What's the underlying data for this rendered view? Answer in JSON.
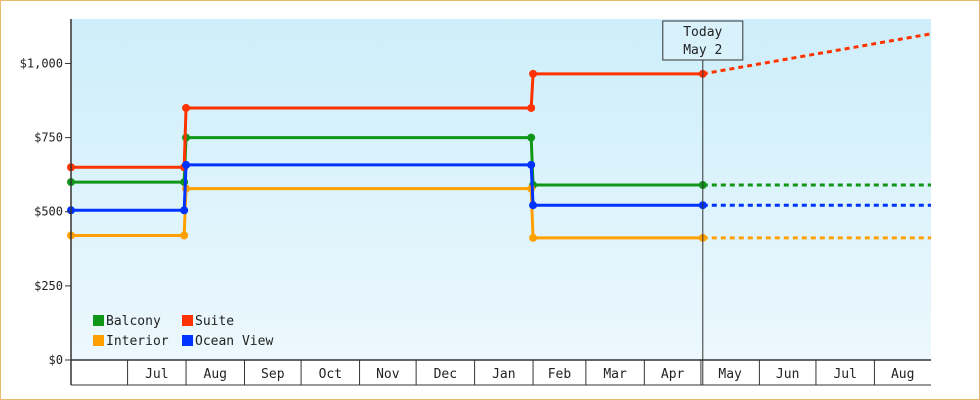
{
  "chart_data": {
    "type": "line",
    "step": true,
    "title": "",
    "xlabel": "",
    "ylabel": "",
    "ylim": [
      0,
      1150
    ],
    "y_ticks": [
      0,
      250,
      500,
      750,
      1000
    ],
    "y_tick_labels": [
      "$0",
      "$250",
      "$500",
      "$750",
      "$1,000"
    ],
    "x_domain": [
      "2024-06-01",
      "2025-08-31"
    ],
    "x_tick_labels": [
      "Jul",
      "Aug",
      "Sep",
      "Oct",
      "Nov",
      "Dec",
      "Jan",
      "Feb",
      "Mar",
      "Apr",
      "May",
      "Jun",
      "Jul",
      "Aug"
    ],
    "today": {
      "date": "2025-05-02",
      "line1": "Today",
      "line2": "May 2"
    },
    "background_gradient": [
      "#cdeefa",
      "#ecf8fd"
    ],
    "grid": false,
    "legend_position": "bottom-left",
    "series": [
      {
        "name": "Balcony",
        "color": "#109618",
        "points": [
          [
            "2024-06-01",
            600
          ],
          [
            "2024-07-31",
            600
          ],
          [
            "2024-08-01",
            750
          ],
          [
            "2025-01-31",
            750
          ],
          [
            "2025-02-01",
            590
          ],
          [
            "2025-05-02",
            590
          ]
        ],
        "forecast": [
          [
            "2025-05-02",
            590
          ],
          [
            "2025-08-31",
            590
          ]
        ]
      },
      {
        "name": "Suite",
        "color": "#ff3300",
        "points": [
          [
            "2024-06-01",
            650
          ],
          [
            "2024-07-31",
            650
          ],
          [
            "2024-08-01",
            850
          ],
          [
            "2025-01-31",
            850
          ],
          [
            "2025-02-01",
            965
          ],
          [
            "2025-05-02",
            965
          ]
        ],
        "forecast": [
          [
            "2025-05-02",
            965
          ],
          [
            "2025-08-31",
            1100
          ]
        ]
      },
      {
        "name": "Interior",
        "color": "#ff9f00",
        "points": [
          [
            "2024-06-01",
            420
          ],
          [
            "2024-07-31",
            420
          ],
          [
            "2024-08-01",
            578
          ],
          [
            "2025-01-31",
            578
          ],
          [
            "2025-02-01",
            412
          ],
          [
            "2025-05-02",
            412
          ]
        ],
        "forecast": [
          [
            "2025-05-02",
            412
          ],
          [
            "2025-08-31",
            412
          ]
        ]
      },
      {
        "name": "Ocean View",
        "color": "#0033ff",
        "points": [
          [
            "2024-06-01",
            505
          ],
          [
            "2024-07-31",
            505
          ],
          [
            "2024-08-01",
            658
          ],
          [
            "2025-01-31",
            658
          ],
          [
            "2025-02-01",
            522
          ],
          [
            "2025-05-02",
            522
          ]
        ],
        "forecast": [
          [
            "2025-05-02",
            522
          ],
          [
            "2025-08-31",
            522
          ]
        ]
      }
    ]
  }
}
